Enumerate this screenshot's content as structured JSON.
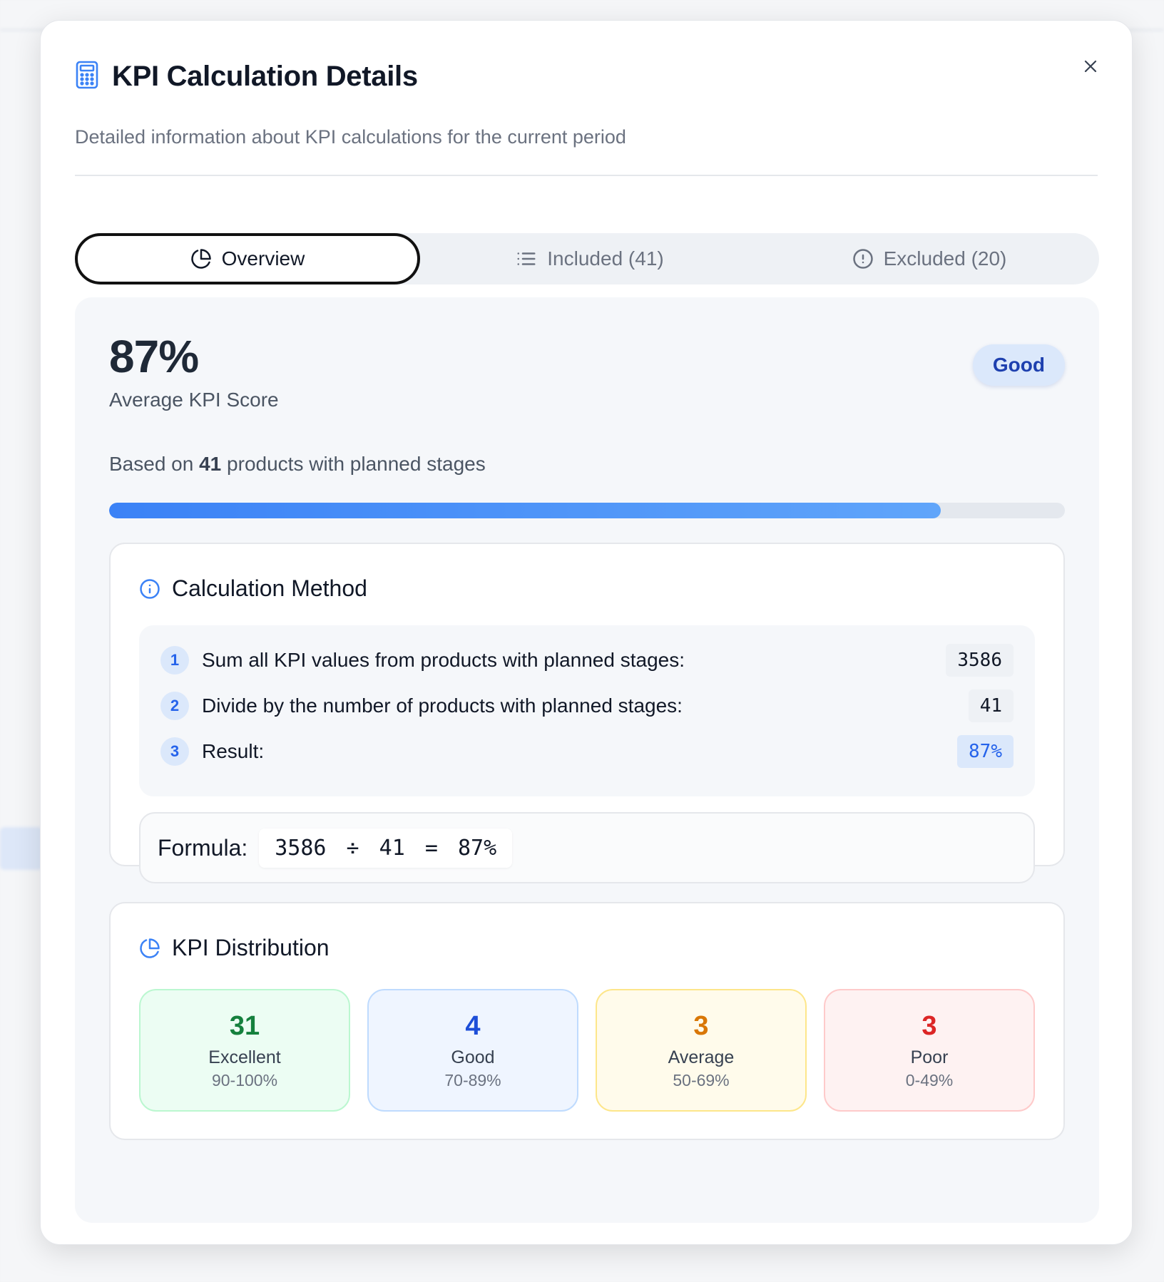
{
  "dialog": {
    "title": "KPI Calculation Details",
    "subtitle": "Detailed information about KPI calculations for the current period",
    "icons": {
      "title": "calculator-icon",
      "close": "close-icon"
    }
  },
  "tabs": [
    {
      "label": "Overview",
      "icon": "pie-chart-icon",
      "active": true
    },
    {
      "label": "Included (41)",
      "icon": "list-icon",
      "active": false
    },
    {
      "label": "Excluded (20)",
      "icon": "alert-circle-icon",
      "active": false
    }
  ],
  "overview": {
    "score": "87%",
    "score_label": "Average KPI Score",
    "badge": "Good",
    "based_prefix": "Based on ",
    "based_count": "41",
    "based_suffix": " products with planned stages",
    "progress_percent": 87
  },
  "calculation": {
    "title": "Calculation Method",
    "steps": [
      {
        "num": "1",
        "text": "Sum all KPI values from products with planned stages:",
        "value": "3586"
      },
      {
        "num": "2",
        "text": "Divide by the number of products with planned stages:",
        "value": "41"
      },
      {
        "num": "3",
        "text": "Result:",
        "value": "87%"
      }
    ],
    "formula_label": "Formula:",
    "formula": "3586 ÷ 41 = 87%"
  },
  "distribution": {
    "title": "KPI Distribution",
    "items": [
      {
        "count": "31",
        "label": "Excellent",
        "range": "90-100%",
        "color": "#15803d",
        "bg": "#ecfdf3",
        "border": "#bbf7d0"
      },
      {
        "count": "4",
        "label": "Good",
        "range": "70-89%",
        "color": "#1d4ed8",
        "bg": "#eff5ff",
        "border": "#bfdbfe"
      },
      {
        "count": "3",
        "label": "Average",
        "range": "50-69%",
        "color": "#d97706",
        "bg": "#fffbeb",
        "border": "#fde68a"
      },
      {
        "count": "3",
        "label": "Poor",
        "range": "0-49%",
        "color": "#dc2626",
        "bg": "#fef2f2",
        "border": "#fecaca"
      }
    ]
  }
}
